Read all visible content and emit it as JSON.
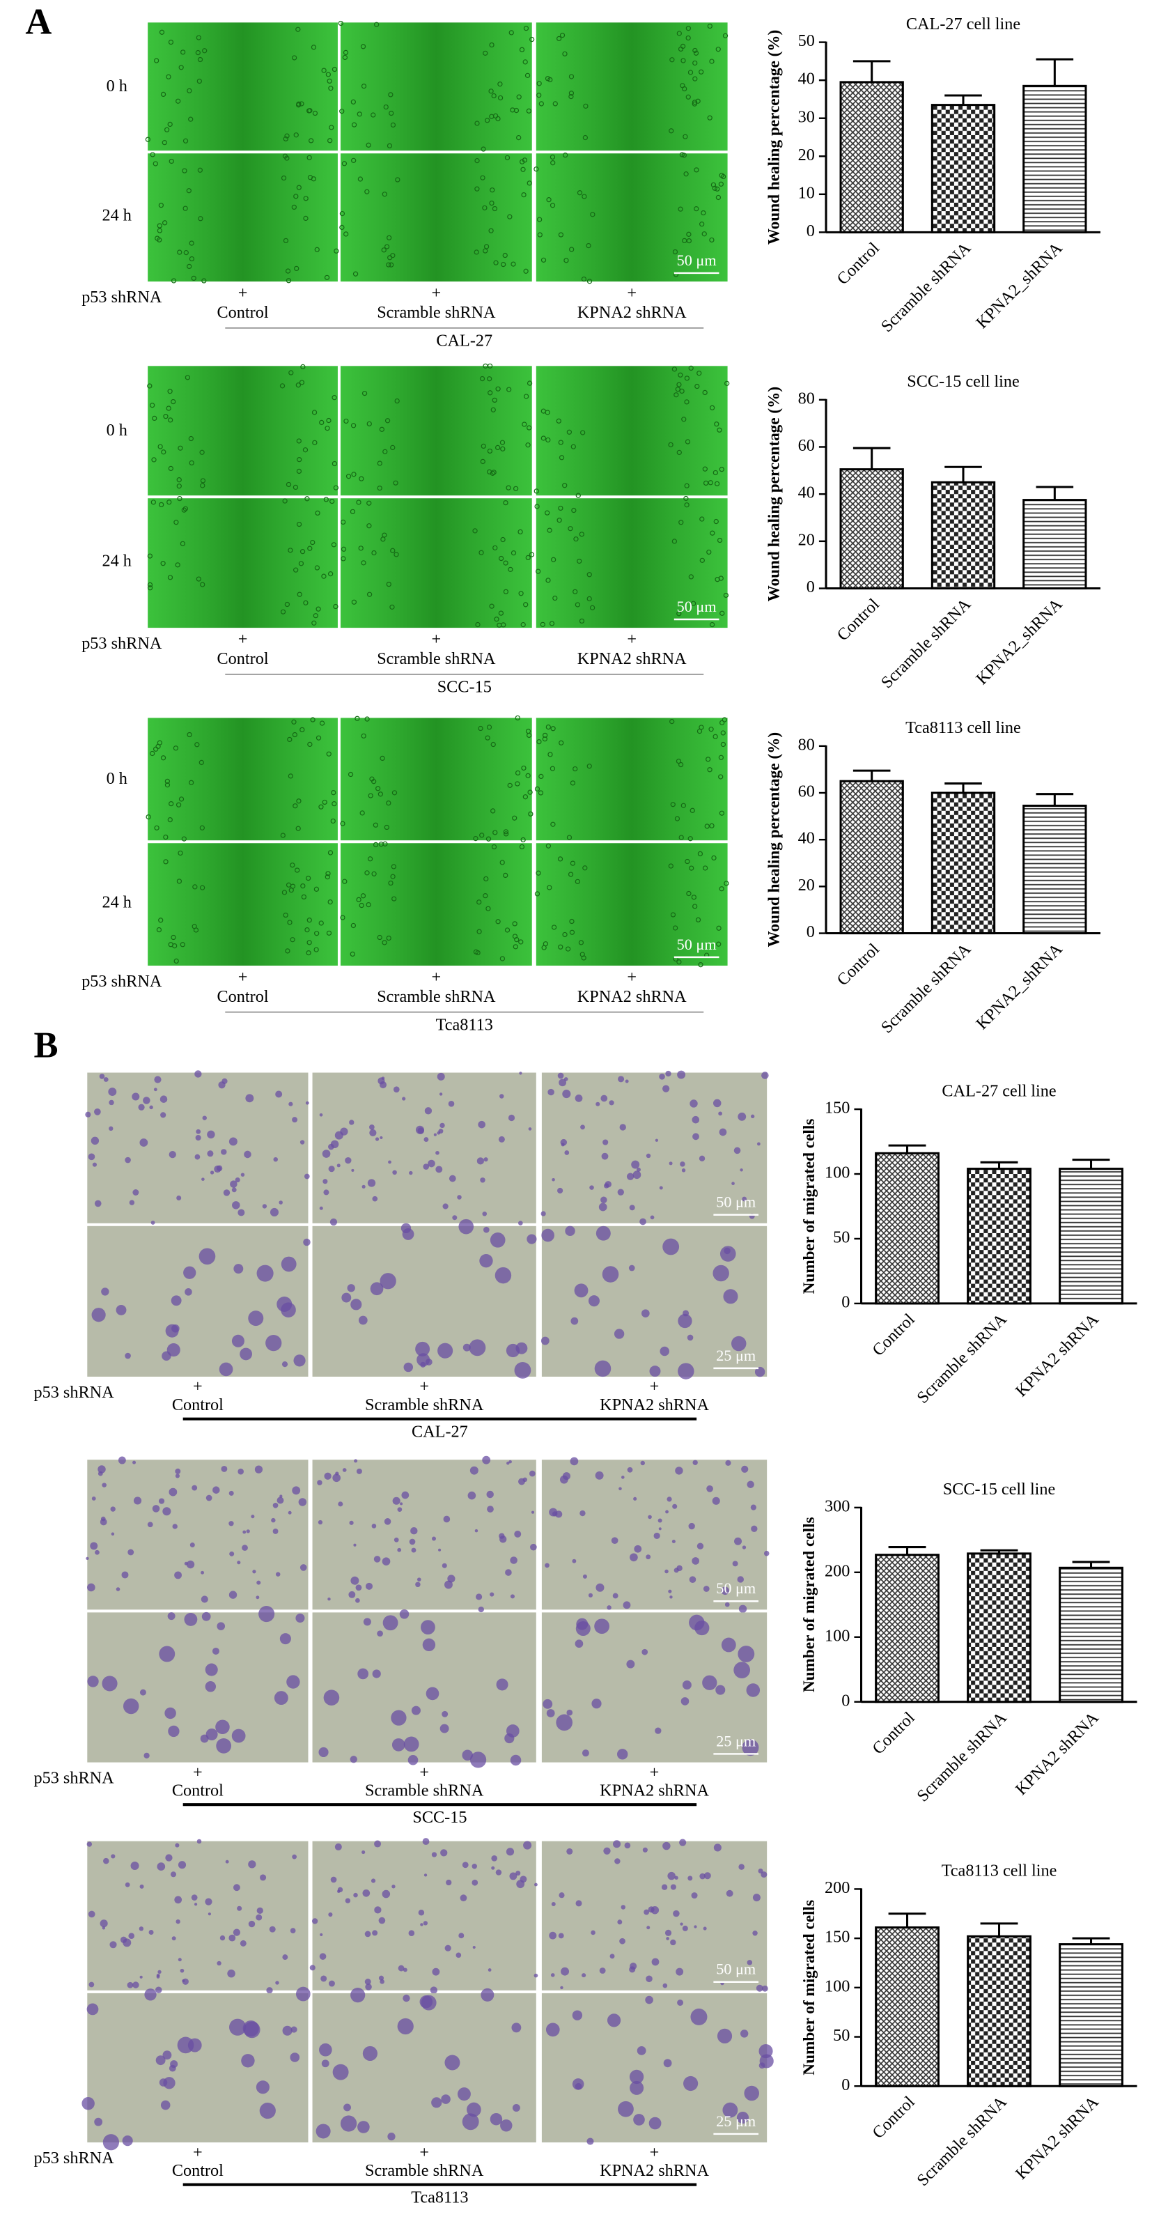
{
  "panels": [
    {
      "label": "A",
      "groups": [
        {
          "time_labels": [
            "0 h",
            "24 h"
          ],
          "scale_bars": [
            "50 μm"
          ],
          "treatment": "p53 shRNA",
          "markers": [
            "+",
            "+",
            "+"
          ],
          "conditions": [
            "Control",
            "Scramble shRNA",
            "KPNA2 shRNA"
          ],
          "cell_line": "CAL-27"
        },
        {
          "time_labels": [
            "0 h",
            "24 h"
          ],
          "scale_bars": [
            "50 μm"
          ],
          "treatment": "p53 shRNA",
          "markers": [
            "+",
            "+",
            "+"
          ],
          "conditions": [
            "Control",
            "Scramble shRNA",
            "KPNA2 shRNA"
          ],
          "cell_line": "SCC-15"
        },
        {
          "time_labels": [
            "0 h",
            "24 h"
          ],
          "scale_bars": [
            "50 μm"
          ],
          "treatment": "p53 shRNA",
          "markers": [
            "+",
            "+",
            "+"
          ],
          "conditions": [
            "Control",
            "Scramble shRNA",
            "KPNA2 shRNA"
          ],
          "cell_line": "Tca8113"
        }
      ]
    },
    {
      "label": "B",
      "groups": [
        {
          "scale_bars": [
            "50 μm",
            "25 μm"
          ],
          "treatment": "p53 shRNA",
          "markers": [
            "+",
            "+",
            "+"
          ],
          "conditions": [
            "Control",
            "Scramble shRNA",
            "KPNA2 shRNA"
          ],
          "cell_line": "CAL-27"
        },
        {
          "scale_bars": [
            "50 μm",
            "25 μm"
          ],
          "treatment": "p53 shRNA",
          "markers": [
            "+",
            "+",
            "+"
          ],
          "conditions": [
            "Control",
            "Scramble shRNA",
            "KPNA2 shRNA"
          ],
          "cell_line": "SCC-15"
        },
        {
          "scale_bars": [
            "50 μm",
            "25 μm"
          ],
          "treatment": "p53 shRNA",
          "markers": [
            "+",
            "+",
            "+"
          ],
          "conditions": [
            "Control",
            "Scramble shRNA",
            "KPNA2 shRNA"
          ],
          "cell_line": "Tca8113"
        }
      ]
    }
  ],
  "chart_data": [
    {
      "type": "bar",
      "title": "CAL-27 cell line",
      "y_label": "Wound healing percentage (%)",
      "categories": [
        "Control",
        "Scramble shRNA",
        "KPNA2_shRNA"
      ],
      "series": [
        {
          "values": [
            39.5,
            33.5,
            38.5
          ],
          "errors": [
            5.5,
            2.5,
            7
          ],
          "color": "#000000"
        }
      ],
      "bar_patterns": [
        "crosshatch",
        "checker",
        "hlines"
      ],
      "ylim": [
        0,
        50
      ],
      "yticks": [
        0,
        10,
        20,
        30,
        40,
        50
      ]
    },
    {
      "type": "bar",
      "title": "SCC-15 cell line",
      "y_label": "Wound healing percentage (%)",
      "categories": [
        "Control",
        "Scramble shRNA",
        "KPNA2_shRNA"
      ],
      "series": [
        {
          "values": [
            50.5,
            45,
            37.5
          ],
          "errors": [
            9,
            6.5,
            5.5
          ],
          "color": "#000000"
        }
      ],
      "bar_patterns": [
        "crosshatch",
        "checker",
        "hlines"
      ],
      "ylim": [
        0,
        80
      ],
      "yticks": [
        0,
        20,
        40,
        60,
        80
      ]
    },
    {
      "type": "bar",
      "title": "Tca8113 cell line",
      "y_label": "Wound healing percentage (%)",
      "categories": [
        "Control",
        "Scramble shRNA",
        "KPNA2_shRNA"
      ],
      "series": [
        {
          "values": [
            65,
            60,
            54.5
          ],
          "errors": [
            4.5,
            4,
            5
          ],
          "color": "#000000"
        }
      ],
      "bar_patterns": [
        "crosshatch",
        "checker",
        "hlines"
      ],
      "ylim": [
        0,
        80
      ],
      "yticks": [
        0,
        20,
        40,
        60,
        80
      ]
    },
    {
      "type": "bar",
      "title": "CAL-27 cell line",
      "y_label": "Number of migrated cells",
      "categories": [
        "Control",
        "Scramble shRNA",
        "KPNA2 shRNA"
      ],
      "series": [
        {
          "values": [
            116,
            104,
            104
          ],
          "errors": [
            6,
            5,
            7
          ],
          "color": "#000000"
        }
      ],
      "bar_patterns": [
        "crosshatch",
        "checker",
        "hlines"
      ],
      "ylim": [
        0,
        150
      ],
      "yticks": [
        0,
        50,
        100,
        150
      ]
    },
    {
      "type": "bar",
      "title": "SCC-15 cell line",
      "y_label": "Number of migrated cells",
      "categories": [
        "Control",
        "Scramble shRNA",
        "KPNA2 shRNA"
      ],
      "series": [
        {
          "values": [
            227,
            229,
            207
          ],
          "errors": [
            12,
            5,
            9
          ],
          "color": "#000000"
        }
      ],
      "bar_patterns": [
        "crosshatch",
        "checker",
        "hlines"
      ],
      "ylim": [
        0,
        300
      ],
      "yticks": [
        0,
        100,
        200,
        300
      ]
    },
    {
      "type": "bar",
      "title": "Tca8113 cell line",
      "y_label": "Number of migrated cells",
      "categories": [
        "Control",
        "Scramble shRNA",
        "KPNA2 shRNA"
      ],
      "series": [
        {
          "values": [
            161,
            152,
            144
          ],
          "errors": [
            14,
            13,
            6
          ],
          "color": "#000000"
        }
      ],
      "bar_patterns": [
        "crosshatch",
        "checker",
        "hlines"
      ],
      "ylim": [
        0,
        200
      ],
      "yticks": [
        0,
        50,
        100,
        150,
        200
      ]
    }
  ]
}
